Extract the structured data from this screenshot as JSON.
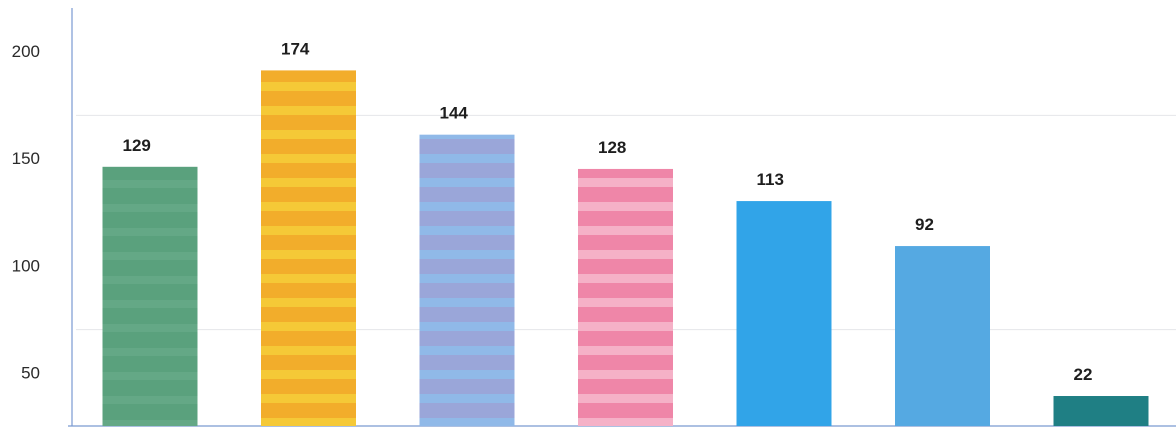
{
  "chart_data": {
    "type": "bar",
    "title": "",
    "xlabel": "",
    "ylabel": "",
    "ylim": [
      25,
      222
    ],
    "y_ticks": [
      "50",
      "100",
      "150",
      "200"
    ],
    "y_tick_values": [
      50,
      100,
      150,
      200
    ],
    "grid": true,
    "values": [
      129,
      174,
      144,
      128,
      113,
      92,
      22
    ],
    "bar_heights": [
      146,
      191,
      161,
      145,
      130,
      109,
      39
    ],
    "value_labels": [
      "129",
      "174",
      "144",
      "128",
      "113",
      "92",
      "22"
    ],
    "colors": [
      "#5aa17d",
      "#f2ad2b",
      "#9aa6d9",
      "#ef86a8",
      "#31a4e8",
      "#55a9e2",
      "#1f7f84"
    ]
  }
}
